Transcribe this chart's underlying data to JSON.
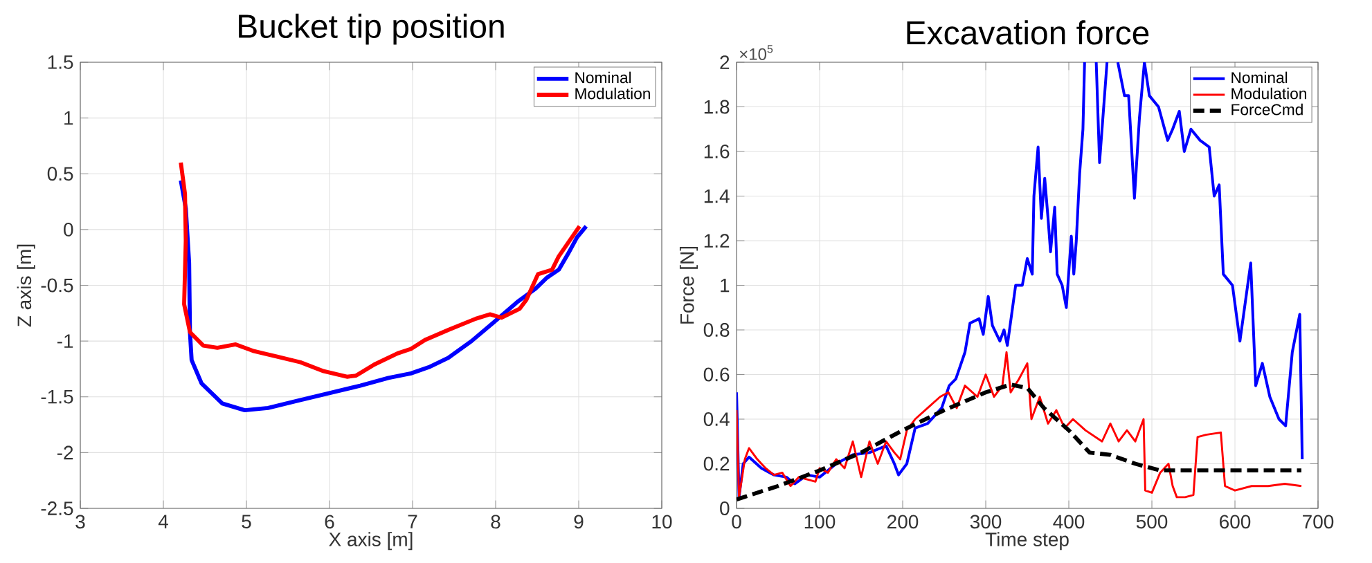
{
  "chart_data": [
    {
      "type": "line",
      "title": "Bucket tip position",
      "xlabel": "X axis [m]",
      "ylabel": "Z axis [m]",
      "xlim": [
        3,
        10
      ],
      "ylim": [
        -2.5,
        1.5
      ],
      "xticks": [
        3,
        4,
        5,
        6,
        7,
        8,
        9,
        10
      ],
      "yticks": [
        -2.5,
        -2,
        -1.5,
        -1,
        -0.5,
        0,
        0.5,
        1,
        1.5
      ],
      "grid": true,
      "legend": "top right",
      "series": [
        {
          "name": "Nominal",
          "color": "#0000ff",
          "x": [
            4.21,
            4.27,
            4.31,
            4.32,
            4.34,
            4.46,
            4.71,
            4.98,
            5.26,
            5.59,
            5.98,
            6.37,
            6.71,
            6.98,
            7.21,
            7.43,
            7.71,
            7.98,
            8.26,
            8.48,
            8.62,
            8.76,
            8.87,
            8.98,
            9.09
          ],
          "values": [
            0.44,
            0.19,
            -0.3,
            -0.92,
            -1.17,
            -1.38,
            -1.56,
            -1.62,
            -1.6,
            -1.54,
            -1.47,
            -1.4,
            -1.33,
            -1.29,
            -1.23,
            -1.15,
            -1.0,
            -0.83,
            -0.65,
            -0.53,
            -0.43,
            -0.36,
            -0.22,
            -0.07,
            0.03
          ]
        },
        {
          "name": "Modulation",
          "color": "#ff0000",
          "x": [
            4.21,
            4.26,
            4.27,
            4.25,
            4.32,
            4.48,
            4.65,
            4.87,
            5.09,
            5.37,
            5.65,
            5.93,
            6.21,
            6.32,
            6.54,
            6.82,
            6.98,
            7.15,
            7.43,
            7.76,
            7.93,
            8.07,
            8.29,
            8.37,
            8.51,
            8.68,
            8.76,
            9.01
          ],
          "values": [
            0.6,
            0.32,
            -0.1,
            -0.67,
            -0.92,
            -1.04,
            -1.06,
            -1.03,
            -1.09,
            -1.14,
            -1.19,
            -1.27,
            -1.32,
            -1.31,
            -1.21,
            -1.11,
            -1.07,
            -0.99,
            -0.9,
            -0.8,
            -0.76,
            -0.79,
            -0.71,
            -0.63,
            -0.4,
            -0.36,
            -0.24,
            0.03
          ]
        }
      ]
    },
    {
      "type": "line",
      "title": "Excavation force",
      "xlabel": "Time step",
      "ylabel": "Force [N]",
      "annotations": [
        "×10$^{5}$"
      ],
      "xlim": [
        0,
        700
      ],
      "ylim": [
        0,
        2
      ],
      "xticks": [
        0,
        100,
        200,
        300,
        400,
        500,
        600,
        700
      ],
      "yticks": [
        0,
        0.2,
        0.4,
        0.6,
        0.8,
        1,
        1.2,
        1.4,
        1.6,
        1.8,
        2
      ],
      "grid": true,
      "legend": "top right",
      "series": [
        {
          "name": "Nominal",
          "color": "#0000ff",
          "x": [
            0,
            3,
            8,
            15,
            30,
            45,
            60,
            70,
            85,
            100,
            120,
            140,
            160,
            180,
            190,
            195,
            205,
            215,
            230,
            247,
            256,
            264,
            275,
            281,
            292,
            297,
            303,
            308,
            317,
            322,
            326,
            336,
            344,
            350,
            356,
            358,
            363,
            367,
            371,
            375,
            378,
            383,
            386,
            392,
            397,
            403,
            406,
            409,
            413,
            417,
            419,
            426,
            433,
            437,
            446,
            452,
            459,
            467,
            472,
            479,
            485,
            491,
            497,
            508,
            519,
            525,
            533,
            539,
            547,
            558,
            569,
            575,
            581,
            586,
            597,
            606,
            619,
            625,
            633,
            642,
            653,
            661,
            669,
            678,
            681
          ],
          "values": [
            0.52,
            0.05,
            0.2,
            0.23,
            0.18,
            0.15,
            0.14,
            0.11,
            0.15,
            0.14,
            0.2,
            0.24,
            0.25,
            0.28,
            0.2,
            0.15,
            0.2,
            0.36,
            0.38,
            0.45,
            0.55,
            0.58,
            0.7,
            0.83,
            0.85,
            0.78,
            0.95,
            0.82,
            0.75,
            0.8,
            0.73,
            1.0,
            1.0,
            1.12,
            1.05,
            1.4,
            1.62,
            1.3,
            1.48,
            1.3,
            1.15,
            1.35,
            1.05,
            1.0,
            0.9,
            1.22,
            1.05,
            1.2,
            1.5,
            1.7,
            2.0,
            null,
            2.0,
            1.55,
            2.0,
            null,
            2.0,
            1.85,
            1.85,
            1.39,
            1.75,
            2.0,
            1.85,
            1.8,
            1.65,
            1.7,
            1.78,
            1.6,
            1.7,
            1.65,
            1.62,
            1.4,
            1.45,
            1.05,
            1.0,
            0.75,
            1.1,
            0.55,
            0.65,
            0.5,
            0.4,
            0.37,
            0.7,
            0.87,
            0.22
          ]
        },
        {
          "name": "Modulation",
          "color": "#ff0000",
          "x": [
            0,
            3,
            10,
            15,
            25,
            35,
            45,
            55,
            65,
            75,
            85,
            95,
            100,
            110,
            120,
            130,
            140,
            150,
            160,
            170,
            180,
            190,
            197,
            205,
            215,
            230,
            245,
            255,
            265,
            275,
            290,
            300,
            310,
            320,
            325,
            330,
            340,
            350,
            355,
            365,
            375,
            385,
            395,
            405,
            420,
            440,
            450,
            460,
            470,
            480,
            490,
            492,
            500,
            510,
            520,
            525,
            530,
            540,
            550,
            555,
            565,
            583,
            588,
            600,
            620,
            640,
            660,
            680
          ],
          "values": [
            0.44,
            0.05,
            0.22,
            0.27,
            0.22,
            0.18,
            0.15,
            0.16,
            0.1,
            0.14,
            0.13,
            0.12,
            0.18,
            0.16,
            0.22,
            0.18,
            0.3,
            0.14,
            0.3,
            0.2,
            0.3,
            0.25,
            0.22,
            0.35,
            0.4,
            0.45,
            0.5,
            0.52,
            0.45,
            0.55,
            0.5,
            0.6,
            0.5,
            0.55,
            0.7,
            0.52,
            0.58,
            0.65,
            0.4,
            0.5,
            0.38,
            0.44,
            0.36,
            0.4,
            0.35,
            0.3,
            0.38,
            0.3,
            0.35,
            0.3,
            0.4,
            0.08,
            0.07,
            0.16,
            0.2,
            0.1,
            0.05,
            0.05,
            0.06,
            0.32,
            0.33,
            0.34,
            0.1,
            0.08,
            0.1,
            0.1,
            0.11,
            0.1
          ]
        },
        {
          "name": "ForceCmd",
          "color": "#000000",
          "line_style": "dashed",
          "x": [
            0,
            50,
            100,
            150,
            200,
            250,
            300,
            330,
            350,
            370,
            400,
            425,
            450,
            480,
            510,
            680
          ],
          "values": [
            0.04,
            0.1,
            0.17,
            0.25,
            0.35,
            0.44,
            0.52,
            0.555,
            0.54,
            0.45,
            0.35,
            0.25,
            0.24,
            0.2,
            0.17,
            0.17
          ]
        }
      ]
    }
  ]
}
